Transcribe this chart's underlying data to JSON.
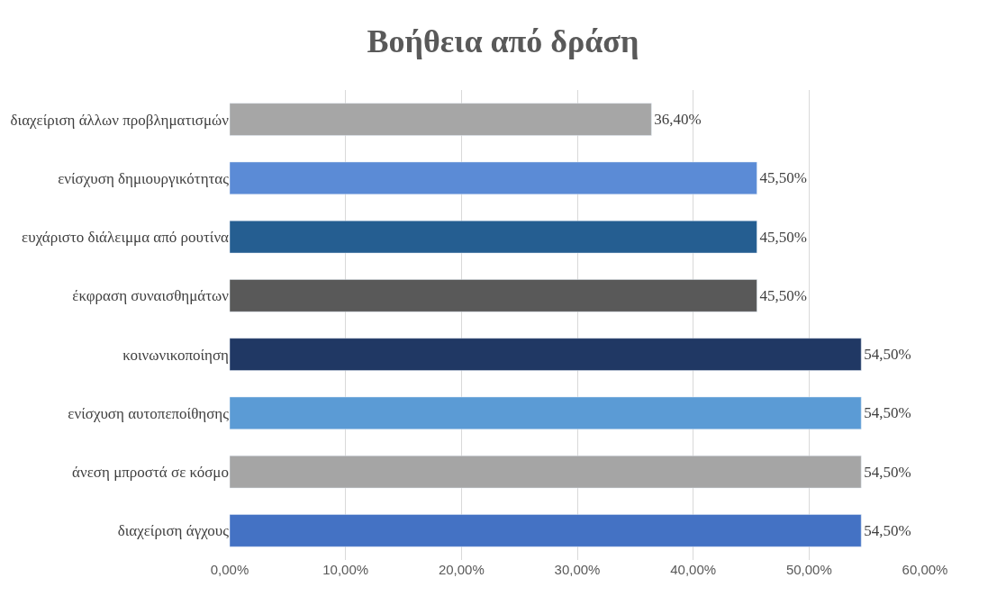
{
  "chart_data": {
    "type": "bar",
    "orientation": "horizontal",
    "title": "Βοήθεια από δράση",
    "categories": [
      "διαχείριση άλλων προβληματισμών",
      "ενίσχυση δημιουργικότητας",
      "ευχάριστο διάλειμμα από ρουτίνα",
      "έκφραση συναισθημάτων",
      "κοινωνικοποίηση",
      "ενίσχυση αυτοπεποίθησης",
      "άνεση μπροστά σε κόσμο",
      "διαχείριση άγχους"
    ],
    "values": [
      36.4,
      45.5,
      45.5,
      45.5,
      54.5,
      54.5,
      54.5,
      54.5
    ],
    "value_labels": [
      "36,40%",
      "45,50%",
      "45,50%",
      "45,50%",
      "54,50%",
      "54,50%",
      "54,50%",
      "54,50%"
    ],
    "colors": [
      "#a6a6a6",
      "#5b8bd6",
      "#255e91",
      "#595959",
      "#203864",
      "#5b9bd5",
      "#a5a5a5",
      "#4472c4"
    ],
    "xlim": [
      0,
      60
    ],
    "xticks": [
      {
        "value": 0,
        "label": "0,00%"
      },
      {
        "value": 10,
        "label": "10,00%"
      },
      {
        "value": 20,
        "label": "20,00%"
      },
      {
        "value": 30,
        "label": "30,00%"
      },
      {
        "value": 40,
        "label": "40,00%"
      },
      {
        "value": 50,
        "label": "50,00%"
      },
      {
        "value": 60,
        "label": "60,00%"
      }
    ],
    "grid": "x"
  }
}
